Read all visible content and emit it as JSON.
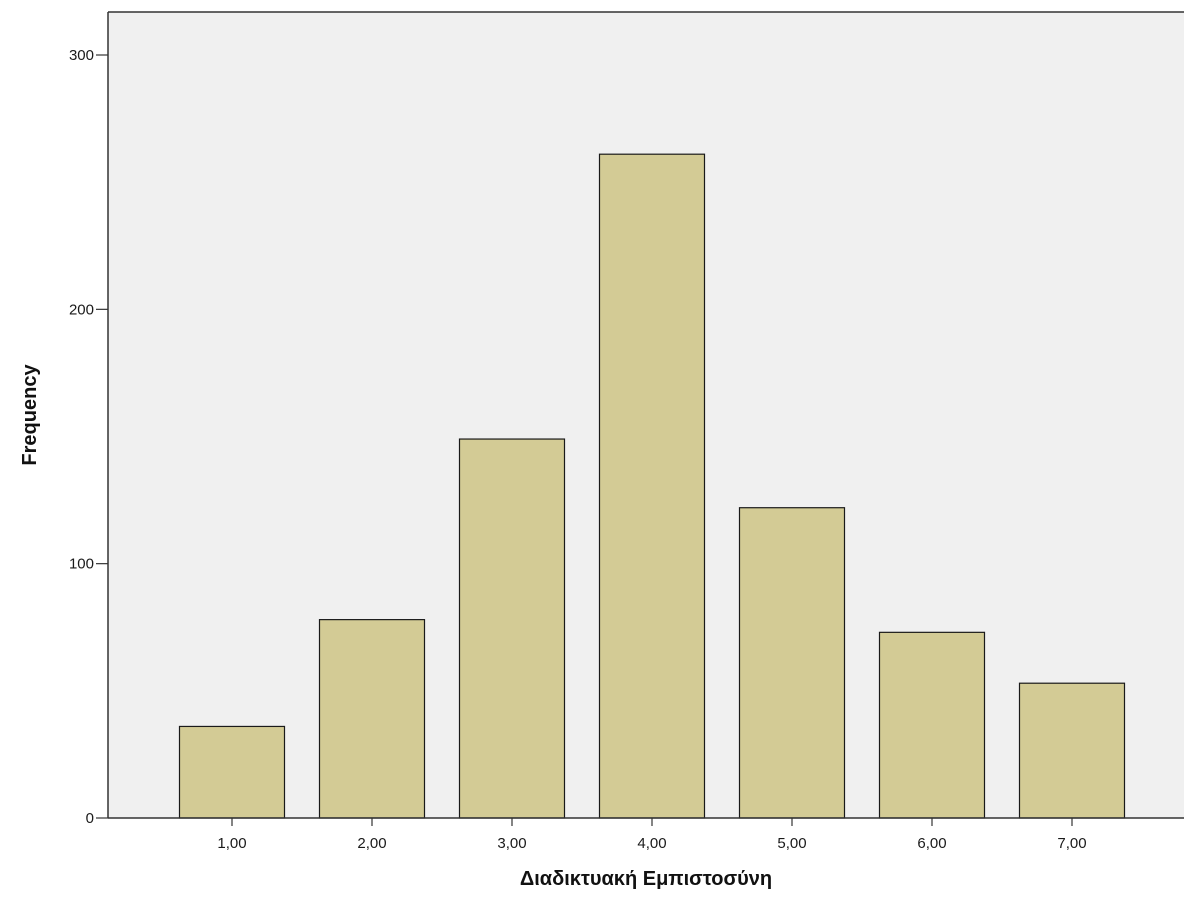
{
  "chart_data": {
    "type": "bar",
    "title": "",
    "xlabel": "Διαδικτυακή Εμπιστοσύνη",
    "ylabel": "Frequency",
    "categories": [
      "1,00",
      "2,00",
      "3,00",
      "4,00",
      "5,00",
      "6,00",
      "7,00"
    ],
    "values": [
      36,
      78,
      149,
      261,
      122,
      73,
      53
    ],
    "ylim": [
      0,
      300
    ],
    "yticks": [
      0,
      100,
      200,
      300
    ],
    "ytick_labels": [
      "0",
      "100",
      "200",
      "300"
    ],
    "grid": false,
    "legend": "none",
    "colors": {
      "bar_fill": "#d3cb95",
      "bar_stroke": "#1a1a1a",
      "plot_background": "#f0f0f0",
      "axis": "#333333"
    }
  }
}
